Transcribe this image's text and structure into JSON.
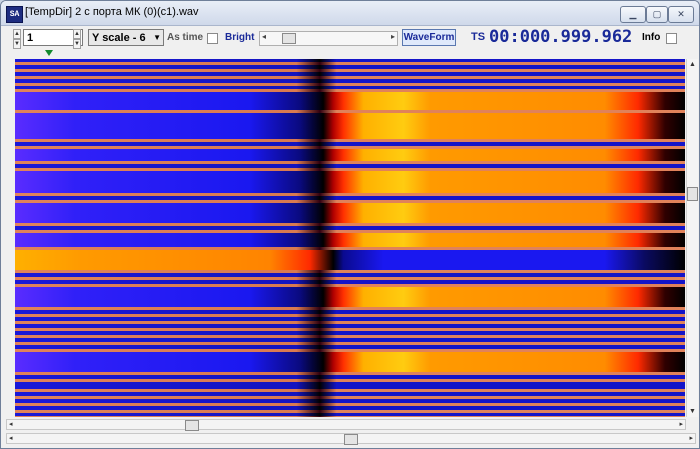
{
  "window": {
    "title": "[TempDir] 2 с порта МК (0)(c1).wav",
    "app_icon_text": "SA",
    "minimize_icon": "minimize-icon",
    "maximize_icon": "maximize-icon",
    "close_icon": "close-icon"
  },
  "toolbar": {
    "channel_value": "1",
    "yscale_value": "Y scale - 6",
    "astime_label": "As time",
    "bright_label": "Bright",
    "waveform_label": "WaveForm",
    "ts_label": "TS",
    "ts_value": "00:000.999.962",
    "info_label": "Info",
    "astime_checked": false,
    "info_checked": false
  },
  "spectrogram": {
    "colors": {
      "low": "#1f1ff0",
      "mid": "#ff8a00",
      "high": "#ffd21a",
      "stripe": "#e0825a",
      "dark": "#000000"
    }
  },
  "scrollbars": {
    "vertical_position": 0.36,
    "horizontal_position_top": 0.26,
    "horizontal_position_bottom": 0.5
  }
}
